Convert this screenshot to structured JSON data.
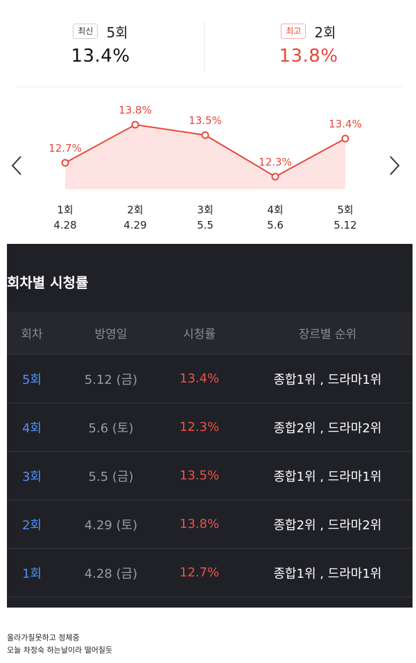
{
  "summary": {
    "latest": {
      "badge": "최신",
      "episode": "5회",
      "rating": "13.4%"
    },
    "best": {
      "badge": "최고",
      "episode": "2회",
      "rating": "13.8%"
    }
  },
  "chart_data": {
    "type": "area",
    "categories": [
      "1회",
      "2회",
      "3회",
      "4회",
      "5회"
    ],
    "dates": [
      "4.28",
      "4.29",
      "5.5",
      "5.6",
      "5.12"
    ],
    "values": [
      12.7,
      13.8,
      13.5,
      12.3,
      13.4
    ],
    "value_labels": [
      "12.7%",
      "13.8%",
      "13.5%",
      "12.3%",
      "13.4%"
    ],
    "ylim": [
      12.0,
      14.2
    ],
    "line_color": "#e8463a",
    "fill_color": "#fde4e2",
    "grid": false,
    "legend": "none",
    "title": "",
    "xlabel": "",
    "ylabel": ""
  },
  "nav": {
    "prev_icon": "chevron-left-icon",
    "next_icon": "chevron-right-icon"
  },
  "section_title": "회차별 시청률",
  "table": {
    "headers": [
      "회차",
      "방영일",
      "시청률",
      "장르별 순위"
    ],
    "rows": [
      {
        "episode": "5회",
        "date": "5.12 (금)",
        "rating": "13.4%",
        "rank": "종합1위 , 드라마1위"
      },
      {
        "episode": "4회",
        "date": "5.6 (토)",
        "rating": "12.3%",
        "rank": "종합2위 , 드라마2위"
      },
      {
        "episode": "3회",
        "date": "5.5 (금)",
        "rating": "13.5%",
        "rank": "종합1위 , 드라마1위"
      },
      {
        "episode": "2회",
        "date": "4.29 (토)",
        "rating": "13.8%",
        "rank": "종합2위 , 드라마2위"
      },
      {
        "episode": "1회",
        "date": "4.28 (금)",
        "rating": "12.7%",
        "rank": "종합1위 , 드라마1위"
      }
    ]
  },
  "colors": {
    "accent_red": "#e8463a",
    "episode_blue": "#4f8ff7",
    "dark_bg": "#202127"
  },
  "caption": {
    "line1": "올라가질못하고 정체중",
    "line2": "오늘 차정숙 하는날이라 떨어질듯"
  }
}
